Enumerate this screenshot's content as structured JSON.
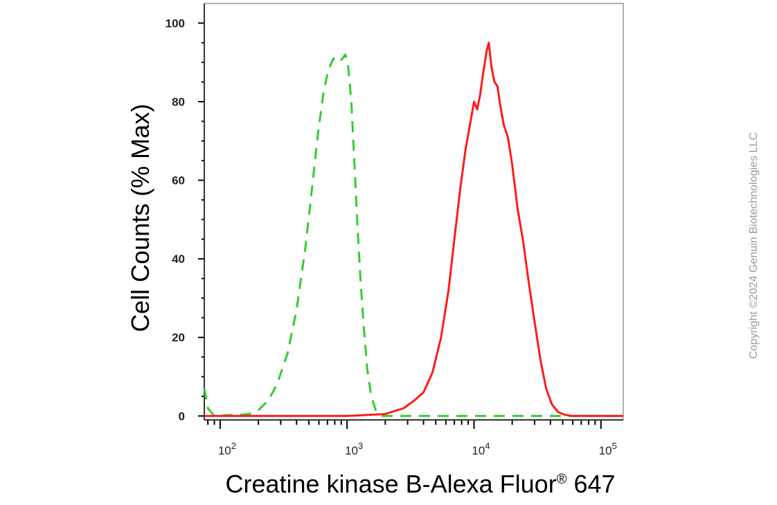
{
  "chart_data": {
    "type": "line",
    "title": "",
    "xlabel": "Creatine kinase B-Alexa Fluor",
    "xlabel_superscript": "®",
    "xlabel_suffix": " 647",
    "ylabel": "Cell Counts (% Max)",
    "x_scale": "log",
    "xlim": [
      75,
      150000
    ],
    "ylim": [
      -1,
      105
    ],
    "y_ticks": [
      0,
      20,
      40,
      60,
      80,
      100
    ],
    "x_ticks": [
      {
        "value": 100,
        "base": "10",
        "exp": "2"
      },
      {
        "value": 1000,
        "base": "10",
        "exp": "3"
      },
      {
        "value": 10000,
        "base": "10",
        "exp": "4"
      },
      {
        "value": 100000,
        "base": "10",
        "exp": "5"
      }
    ],
    "grid": false,
    "legend": "none",
    "series": [
      {
        "color": "#33cc33",
        "style": "dashed",
        "points": [
          [
            75,
            7
          ],
          [
            80,
            2
          ],
          [
            90,
            0
          ],
          [
            110,
            0.2
          ],
          [
            140,
            0.3
          ],
          [
            170,
            0.5
          ],
          [
            200,
            1.5
          ],
          [
            240,
            4
          ],
          [
            280,
            8
          ],
          [
            340,
            16
          ],
          [
            400,
            27
          ],
          [
            470,
            43
          ],
          [
            530,
            58
          ],
          [
            590,
            72
          ],
          [
            650,
            82
          ],
          [
            710,
            88
          ],
          [
            780,
            91
          ],
          [
            860,
            90
          ],
          [
            920,
            91
          ],
          [
            970,
            92
          ],
          [
            1020,
            89
          ],
          [
            1080,
            80
          ],
          [
            1140,
            65
          ],
          [
            1210,
            48
          ],
          [
            1280,
            34
          ],
          [
            1360,
            22
          ],
          [
            1440,
            12
          ],
          [
            1550,
            5
          ],
          [
            1700,
            1
          ],
          [
            1900,
            0
          ],
          [
            2500,
            0
          ],
          [
            5000,
            0
          ],
          [
            10000,
            0
          ],
          [
            50000,
            0
          ],
          [
            150000,
            0
          ]
        ]
      },
      {
        "color": "#ff1a1a",
        "style": "solid",
        "points": [
          [
            75,
            0
          ],
          [
            1000,
            0
          ],
          [
            2000,
            0.5
          ],
          [
            2800,
            2
          ],
          [
            3400,
            4
          ],
          [
            4000,
            6
          ],
          [
            4700,
            11
          ],
          [
            5500,
            20
          ],
          [
            6300,
            32
          ],
          [
            7000,
            45
          ],
          [
            7800,
            58
          ],
          [
            8600,
            68
          ],
          [
            9400,
            75
          ],
          [
            10000,
            80
          ],
          [
            10600,
            78
          ],
          [
            11200,
            82
          ],
          [
            11900,
            88
          ],
          [
            12600,
            93
          ],
          [
            13100,
            95
          ],
          [
            13700,
            89
          ],
          [
            14500,
            85
          ],
          [
            15300,
            84
          ],
          [
            16100,
            79
          ],
          [
            17200,
            74
          ],
          [
            18500,
            71
          ],
          [
            20000,
            64
          ],
          [
            22000,
            53
          ],
          [
            24500,
            44
          ],
          [
            27000,
            34
          ],
          [
            30000,
            24
          ],
          [
            33500,
            14
          ],
          [
            37000,
            7
          ],
          [
            41000,
            3
          ],
          [
            46000,
            1
          ],
          [
            52000,
            0.3
          ],
          [
            60000,
            0
          ],
          [
            150000,
            0
          ]
        ]
      }
    ]
  },
  "watermark": "Copyright ©2024 Genuin Biotechnologies LLC"
}
